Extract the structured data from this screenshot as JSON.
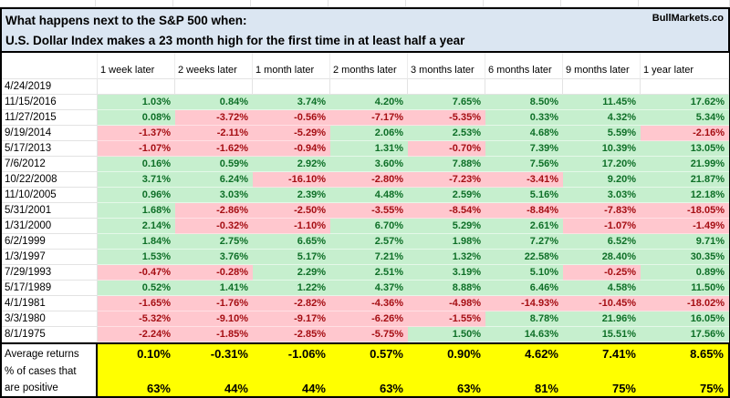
{
  "header": {
    "line1": "What happens next to the S&P 500 when:",
    "line2": "U.S. Dollar Index makes a 23 month high for the first time in at least half a year",
    "brand": "BullMarkets.co"
  },
  "colors": {
    "title_bg": "#dbe6f2",
    "positive_bg": "#c6efce",
    "positive_text": "#0e6f27",
    "negative_bg": "#ffc7ce",
    "negative_text": "#a50e13",
    "summary_bg": "#ffff00",
    "border": "#000000"
  },
  "table": {
    "columns": [
      "1 week later",
      "2 weeks later",
      "1 month later",
      "2 months later",
      "3 months later",
      "6 months later",
      "9 months later",
      "1 year later"
    ],
    "rows": [
      {
        "date": "4/24/2019",
        "values": [
          "",
          "",
          "",
          "",
          "",
          "",
          "",
          ""
        ]
      },
      {
        "date": "11/15/2016",
        "values": [
          "1.03%",
          "0.84%",
          "3.74%",
          "4.20%",
          "7.65%",
          "8.50%",
          "11.45%",
          "17.62%"
        ]
      },
      {
        "date": "11/27/2015",
        "values": [
          "0.08%",
          "-3.72%",
          "-0.56%",
          "-7.17%",
          "-5.35%",
          "0.33%",
          "4.32%",
          "5.34%"
        ]
      },
      {
        "date": "9/19/2014",
        "values": [
          "-1.37%",
          "-2.11%",
          "-5.29%",
          "2.06%",
          "2.53%",
          "4.68%",
          "5.59%",
          "-2.16%"
        ]
      },
      {
        "date": "5/17/2013",
        "values": [
          "-1.07%",
          "-1.62%",
          "-0.94%",
          "1.31%",
          "-0.70%",
          "7.39%",
          "10.39%",
          "13.05%"
        ]
      },
      {
        "date": "7/6/2012",
        "values": [
          "0.16%",
          "0.59%",
          "2.92%",
          "3.60%",
          "7.88%",
          "7.56%",
          "17.20%",
          "21.99%"
        ]
      },
      {
        "date": "10/22/2008",
        "values": [
          "3.71%",
          "6.24%",
          "-16.10%",
          "-2.80%",
          "-7.23%",
          "-3.41%",
          "9.20%",
          "21.87%"
        ]
      },
      {
        "date": "11/10/2005",
        "values": [
          "0.96%",
          "3.03%",
          "2.39%",
          "4.48%",
          "2.59%",
          "5.16%",
          "3.03%",
          "12.18%"
        ]
      },
      {
        "date": "5/31/2001",
        "values": [
          "1.68%",
          "-2.86%",
          "-2.50%",
          "-3.55%",
          "-8.54%",
          "-8.84%",
          "-7.83%",
          "-18.05%"
        ]
      },
      {
        "date": "1/31/2000",
        "values": [
          "2.14%",
          "-0.32%",
          "-1.10%",
          "6.70%",
          "5.29%",
          "2.61%",
          "-1.07%",
          "-1.49%"
        ]
      },
      {
        "date": "6/2/1999",
        "values": [
          "1.84%",
          "2.75%",
          "6.65%",
          "2.57%",
          "1.98%",
          "7.27%",
          "6.52%",
          "9.71%"
        ]
      },
      {
        "date": "1/3/1997",
        "values": [
          "1.53%",
          "3.76%",
          "5.17%",
          "7.21%",
          "1.32%",
          "22.58%",
          "28.40%",
          "30.35%"
        ]
      },
      {
        "date": "7/29/1993",
        "values": [
          "-0.47%",
          "-0.28%",
          "2.29%",
          "2.51%",
          "3.19%",
          "5.10%",
          "-0.25%",
          "0.89%"
        ]
      },
      {
        "date": "5/17/1989",
        "values": [
          "0.52%",
          "1.41%",
          "1.22%",
          "4.37%",
          "8.88%",
          "6.46%",
          "4.58%",
          "11.50%"
        ]
      },
      {
        "date": "4/1/1981",
        "values": [
          "-1.65%",
          "-1.76%",
          "-2.82%",
          "-4.36%",
          "-4.98%",
          "-14.93%",
          "-10.45%",
          "-18.02%"
        ]
      },
      {
        "date": "3/3/1980",
        "values": [
          "-5.32%",
          "-9.10%",
          "-9.17%",
          "-6.26%",
          "-1.55%",
          "8.78%",
          "21.96%",
          "16.05%"
        ]
      },
      {
        "date": "8/1/1975",
        "values": [
          "-2.24%",
          "-1.85%",
          "-2.85%",
          "-5.75%",
          "1.50%",
          "14.63%",
          "15.51%",
          "17.56%"
        ]
      }
    ]
  },
  "summary": {
    "avg_label": "Average returns",
    "pos_label_line1": "% of cases that",
    "pos_label_line2": "are positive",
    "averages": [
      "0.10%",
      "-0.31%",
      "-1.06%",
      "0.57%",
      "0.90%",
      "4.62%",
      "7.41%",
      "8.65%"
    ],
    "positives": [
      "63%",
      "44%",
      "44%",
      "63%",
      "63%",
      "81%",
      "75%",
      "75%"
    ]
  }
}
